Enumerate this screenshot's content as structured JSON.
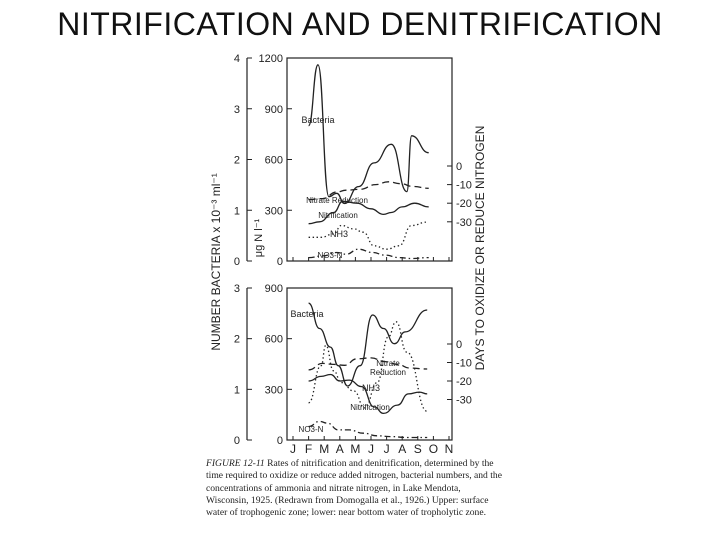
{
  "slide": {
    "title": "NITRIFICATION AND DENITRIFICATION"
  },
  "caption": {
    "figure_label": "FIGURE 12-11",
    "text": "Rates of nitrification and denitrification, determined by the time required to oxidize or reduce added nitrogen, bacterial numbers, and the concentrations of ammonia and nitrate nitrogen, in Lake Mendota, Wisconsin, 1925. (Redrawn from Domogalla et al., 1926.) Upper: surface water of trophogenic zone; lower: near bottom water of tropholytic zone."
  },
  "axis_text": {
    "left_label": "NUMBER BACTERIA x 10⁻³ ml⁻¹",
    "mid_label": "μg N l⁻¹",
    "right_label": "DAYS TO OXIDIZE OR REDUCE NITROGEN"
  },
  "colors": {
    "ink": "#222222",
    "background": "#ffffff"
  },
  "chart_data": [
    {
      "type": "line",
      "panel": "upper",
      "x": [
        "J",
        "F",
        "M",
        "A",
        "M",
        "J",
        "J",
        "A",
        "S",
        "O",
        "N"
      ],
      "bacteria_ticks": [
        "0",
        "1",
        "2",
        "3",
        "4"
      ],
      "n_ticks": [
        "0",
        "300",
        "600",
        "900",
        "1200"
      ],
      "days_ticks": [
        "0",
        "-10",
        "-20",
        "-30"
      ],
      "ylim_n": [
        0,
        1200
      ],
      "ylim_days": [
        0,
        40
      ],
      "series": [
        {
          "name": "Bacteria",
          "axis": "n",
          "style": "solid",
          "points": [
            [
              1.0,
              800
            ],
            [
              1.6,
              1160
            ],
            [
              2.3,
              380
            ],
            [
              2.8,
              400
            ],
            [
              3.3,
              340
            ],
            [
              4.2,
              440
            ],
            [
              5.2,
              580
            ],
            [
              6.3,
              690
            ],
            [
              7.3,
              410
            ],
            [
              7.6,
              740
            ],
            [
              8.7,
              640
            ]
          ]
        },
        {
          "name": "Nitrate Reduction",
          "axis": "days",
          "style": "dashed",
          "points": [
            [
              1.0,
              18
            ],
            [
              1.9,
              17.5
            ],
            [
              2.8,
              14
            ],
            [
              3.4,
              13
            ],
            [
              4.3,
              12.5
            ],
            [
              5.3,
              10
            ],
            [
              6.1,
              8.5
            ],
            [
              6.9,
              9.5
            ],
            [
              7.7,
              11
            ],
            [
              8.7,
              12
            ]
          ]
        },
        {
          "name": "Nitrification",
          "axis": "days",
          "style": "solid",
          "points": [
            [
              1.0,
              31
            ],
            [
              1.7,
              30
            ],
            [
              2.6,
              25
            ],
            [
              3.2,
              19
            ],
            [
              4.1,
              20
            ],
            [
              5.0,
              23
            ],
            [
              5.8,
              26
            ],
            [
              6.3,
              25
            ],
            [
              7.0,
              22
            ],
            [
              7.8,
              20
            ],
            [
              8.7,
              22
            ]
          ]
        },
        {
          "name": "NH3",
          "axis": "n",
          "style": "dotted",
          "points": [
            [
              1.0,
              140
            ],
            [
              1.8,
              140
            ],
            [
              2.6,
              160
            ],
            [
              3.1,
              210
            ],
            [
              3.9,
              190
            ],
            [
              4.5,
              170
            ],
            [
              5.2,
              90
            ],
            [
              6.0,
              70
            ],
            [
              6.8,
              90
            ],
            [
              7.6,
              210
            ],
            [
              8.6,
              230
            ]
          ]
        },
        {
          "name": "NO3-N",
          "axis": "n",
          "style": "dash-dot",
          "points": [
            [
              1.0,
              20
            ],
            [
              1.9,
              30
            ],
            [
              2.8,
              50
            ],
            [
              3.4,
              40
            ],
            [
              4.2,
              70
            ],
            [
              5.1,
              50
            ],
            [
              5.9,
              35
            ],
            [
              6.8,
              20
            ],
            [
              7.6,
              15
            ],
            [
              8.7,
              20
            ]
          ]
        }
      ],
      "annotations": [
        "Bacteria",
        "Nitrate Reduction",
        "Nitrification",
        "NH3",
        "NO3-N"
      ]
    },
    {
      "type": "line",
      "panel": "lower",
      "x": [
        "J",
        "F",
        "M",
        "A",
        "M",
        "J",
        "J",
        "A",
        "S",
        "O",
        "N"
      ],
      "month_ticks": [
        "J",
        "F",
        "M",
        "A",
        "M",
        "J",
        "J",
        "A",
        "S",
        "O",
        "N"
      ],
      "bacteria_ticks": [
        "0",
        "1",
        "2",
        "3"
      ],
      "n_ticks": [
        "0",
        "300",
        "600",
        "900"
      ],
      "days_ticks": [
        "0",
        "-10",
        "-20",
        "-30"
      ],
      "ylim_n": [
        0,
        900
      ],
      "ylim_days": [
        0,
        40
      ],
      "series": [
        {
          "name": "Bacteria",
          "axis": "n",
          "style": "solid",
          "points": [
            [
              1.0,
              810
            ],
            [
              1.7,
              660
            ],
            [
              2.4,
              550
            ],
            [
              2.9,
              440
            ],
            [
              3.5,
              320
            ],
            [
              4.3,
              440
            ],
            [
              5.1,
              740
            ],
            [
              5.8,
              660
            ],
            [
              6.5,
              570
            ],
            [
              7.2,
              640
            ],
            [
              8.6,
              770
            ]
          ]
        },
        {
          "name": "Nitrate Reduction",
          "axis": "days",
          "style": "dashed",
          "points": [
            [
              1.0,
              14
            ],
            [
              1.9,
              10.5
            ],
            [
              2.6,
              11
            ],
            [
              3.3,
              11.5
            ],
            [
              4.1,
              8
            ],
            [
              5.0,
              7.5
            ],
            [
              5.9,
              9.5
            ],
            [
              6.7,
              11
            ],
            [
              7.5,
              13
            ],
            [
              8.6,
              13.5
            ]
          ]
        },
        {
          "name": "NH3",
          "axis": "n",
          "style": "dotted",
          "points": [
            [
              1.0,
              220
            ],
            [
              1.8,
              440
            ],
            [
              2.1,
              560
            ],
            [
              2.6,
              410
            ],
            [
              3.1,
              340
            ],
            [
              3.9,
              290
            ],
            [
              4.6,
              190
            ],
            [
              5.4,
              340
            ],
            [
              6.1,
              610
            ],
            [
              6.6,
              700
            ],
            [
              7.3,
              520
            ],
            [
              8.6,
              170
            ]
          ]
        },
        {
          "name": "Nitrification",
          "axis": "days",
          "style": "solid",
          "points": [
            [
              1.0,
              20
            ],
            [
              1.8,
              17.5
            ],
            [
              2.4,
              16.5
            ],
            [
              3.0,
              20
            ],
            [
              3.6,
              19.5
            ],
            [
              4.4,
              23
            ],
            [
              5.2,
              34
            ],
            [
              5.8,
              37.5
            ],
            [
              6.7,
              33
            ],
            [
              7.4,
              27
            ],
            [
              8.1,
              26
            ],
            [
              8.6,
              27
            ]
          ]
        },
        {
          "name": "NO3-N",
          "axis": "n",
          "style": "dash-dot",
          "points": [
            [
              1.0,
              80
            ],
            [
              1.7,
              110
            ],
            [
              2.2,
              100
            ],
            [
              2.9,
              60
            ],
            [
              3.6,
              60
            ],
            [
              4.5,
              40
            ],
            [
              5.4,
              25
            ],
            [
              6.3,
              20
            ],
            [
              7.3,
              15
            ],
            [
              8.6,
              15
            ]
          ]
        }
      ],
      "annotations": [
        "Bacteria",
        "Nitrate Reduction",
        "NH3",
        "Nitrification",
        "NO3-N"
      ]
    }
  ]
}
